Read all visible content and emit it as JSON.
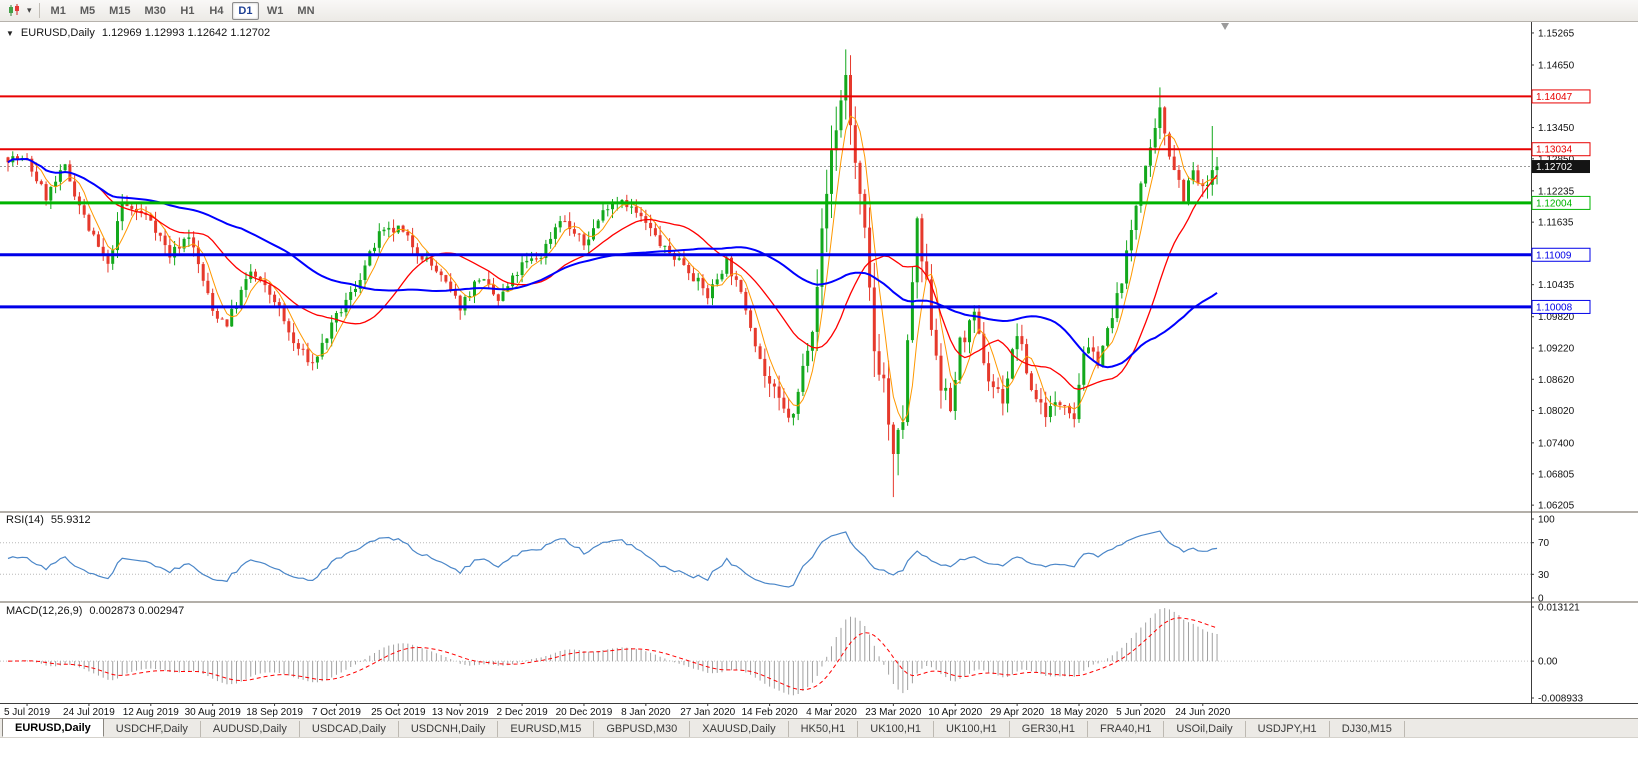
{
  "toolbar": {
    "timeframes": [
      "M1",
      "M5",
      "M15",
      "M30",
      "H1",
      "H4",
      "D1",
      "W1",
      "MN"
    ],
    "active_timeframe": "D1"
  },
  "main_chart": {
    "symbol_title": "EURUSD,Daily",
    "ohlc": "1.12969 1.12993 1.12642 1.12702",
    "bid_label": "1.12702",
    "axis_labels": [
      "1.15265",
      "1.14650",
      "1.13450",
      "1.12850",
      "1.12235",
      "1.11635",
      "1.10435",
      "1.09820",
      "1.09220",
      "1.08620",
      "1.08020",
      "1.07400",
      "1.06805",
      "1.06205"
    ],
    "hlines": [
      {
        "price": 1.14047,
        "label": "1.14047",
        "color": "#e80000",
        "width": 2
      },
      {
        "price": 1.13034,
        "label": "1.13034",
        "color": "#e80000",
        "width": 2
      },
      {
        "price": 1.12004,
        "label": "1.12004",
        "color": "#00b400",
        "width": 3
      },
      {
        "price": 1.11009,
        "label": "1.11009",
        "color": "#0000e8",
        "width": 3
      },
      {
        "price": 1.10008,
        "label": "1.10008",
        "color": "#0000e8",
        "width": 3
      }
    ]
  },
  "rsi_panel": {
    "title": "RSI(14)",
    "value": "55.9312",
    "axis_labels": [
      "100",
      "70",
      "30",
      "0"
    ],
    "level_lines": [
      70,
      30
    ]
  },
  "macd_panel": {
    "title": "MACD(12,26,9)",
    "values": "0.002873 0.002947",
    "axis_labels": [
      {
        "value": 0.013121,
        "label": "0.013121"
      },
      {
        "value": 0,
        "label": "0.00"
      },
      {
        "value": -0.008933,
        "label": "-0.008933"
      }
    ]
  },
  "time_axis": {
    "labels": [
      "5 Jul 2019",
      "24 Jul 2019",
      "12 Aug 2019",
      "30 Aug 2019",
      "18 Sep 2019",
      "7 Oct 2019",
      "25 Oct 2019",
      "13 Nov 2019",
      "2 Dec 2019",
      "20 Dec 2019",
      "8 Jan 2020",
      "27 Jan 2020",
      "14 Feb 2020",
      "4 Mar 2020",
      "23 Mar 2020",
      "10 Apr 2020",
      "29 Apr 2020",
      "18 May 2020",
      "5 Jun 2020",
      "24 Jun 2020"
    ]
  },
  "tabs": {
    "active": "EURUSD,Daily",
    "items": [
      "EURUSD,Daily",
      "USDCHF,Daily",
      "AUDUSD,Daily",
      "USDCAD,Daily",
      "USDCNH,Daily",
      "EURUSD,M15",
      "GBPUSD,M30",
      "XAUUSD,Daily",
      "HK50,H1",
      "UK100,H1",
      "UK100,H1",
      "GER30,H1",
      "FRA40,H1",
      "USOil,Daily",
      "USDJPY,H1",
      "DJ30,M15"
    ]
  },
  "colors": {
    "up": "#13a81c",
    "down": "#e6392c",
    "ma_fast": "#ff9800",
    "ma_mid": "#ff0000",
    "ma_slow": "#0000ff",
    "rsi_line": "#4a86c8",
    "macd_hist": "#a0a0a0",
    "macd_signal": "#ff0000",
    "bid_box_bg": "#141414",
    "bid_box_text": "#ffffff",
    "axis_text": "#111111"
  },
  "chart_data": {
    "type": "candlestick",
    "symbol": "EURUSD",
    "timeframe": "Daily",
    "title": "EURUSD,Daily 1.12969 1.12993 1.12642 1.12702",
    "candle_count": 255,
    "last_close": 1.12702,
    "price_axis_range": [
      1.0615,
      1.1536
    ],
    "macd_axis": {
      "max": 0.013121,
      "min": -0.008933
    },
    "rsi_axis": [
      0,
      100
    ],
    "time_tick_first_index": 4,
    "time_tick_step": 13,
    "seed": 7,
    "close_anchors": [
      [
        0,
        1.1288
      ],
      [
        4,
        1.128
      ],
      [
        8,
        1.1212
      ],
      [
        12,
        1.1268
      ],
      [
        17,
        1.115
      ],
      [
        21,
        1.1077
      ],
      [
        24,
        1.1198
      ],
      [
        30,
        1.117
      ],
      [
        34,
        1.11
      ],
      [
        38,
        1.114
      ],
      [
        43,
        1.0992
      ],
      [
        46,
        1.097
      ],
      [
        51,
        1.1068
      ],
      [
        56,
        1.1015
      ],
      [
        60,
        1.093
      ],
      [
        64,
        1.0892
      ],
      [
        69,
        1.098
      ],
      [
        73,
        1.104
      ],
      [
        78,
        1.1138
      ],
      [
        82,
        1.115
      ],
      [
        86,
        1.111
      ],
      [
        90,
        1.107
      ],
      [
        95,
        1.1002
      ],
      [
        99,
        1.1058
      ],
      [
        103,
        1.1012
      ],
      [
        108,
        1.108
      ],
      [
        112,
        1.11
      ],
      [
        116,
        1.1173
      ],
      [
        121,
        1.112
      ],
      [
        126,
        1.1198
      ],
      [
        129,
        1.121
      ],
      [
        134,
        1.116
      ],
      [
        138,
        1.111
      ],
      [
        142,
        1.1085
      ],
      [
        147,
        1.1022
      ],
      [
        151,
        1.109
      ],
      [
        155,
        1.1
      ],
      [
        159,
        1.087
      ],
      [
        163,
        1.08
      ],
      [
        165,
        1.0788
      ],
      [
        169,
        1.0978
      ],
      [
        171,
        1.1135
      ],
      [
        173,
        1.13
      ],
      [
        176,
        1.1446
      ],
      [
        178,
        1.127
      ],
      [
        180,
        1.113
      ],
      [
        182,
        1.092
      ],
      [
        184,
        1.086
      ],
      [
        186,
        1.07
      ],
      [
        188,
        1.079
      ],
      [
        190,
        1.105
      ],
      [
        191,
        1.1145
      ],
      [
        193,
        1.103
      ],
      [
        196,
        1.0862
      ],
      [
        198,
        1.0802
      ],
      [
        200,
        1.093
      ],
      [
        203,
        1.0978
      ],
      [
        206,
        1.0862
      ],
      [
        209,
        1.0825
      ],
      [
        212,
        1.0952
      ],
      [
        215,
        1.0842
      ],
      [
        218,
        1.08
      ],
      [
        222,
        1.0822
      ],
      [
        224,
        1.0792
      ],
      [
        226,
        1.0918
      ],
      [
        229,
        1.09
      ],
      [
        232,
        1.0978
      ],
      [
        235,
        1.1098
      ],
      [
        238,
        1.1248
      ],
      [
        240,
        1.1292
      ],
      [
        242,
        1.1373
      ],
      [
        244,
        1.13
      ],
      [
        247,
        1.1215
      ],
      [
        249,
        1.1258
      ],
      [
        251,
        1.122
      ],
      [
        253,
        1.1252
      ],
      [
        254,
        1.12702
      ]
    ],
    "volatility": [
      {
        "from": 0,
        "to": 158,
        "range": 0.0036
      },
      {
        "from": 159,
        "to": 168,
        "range": 0.0052
      },
      {
        "from": 169,
        "to": 196,
        "range": 0.01
      },
      {
        "from": 197,
        "to": 214,
        "range": 0.0055
      },
      {
        "from": 215,
        "to": 235,
        "range": 0.0045
      },
      {
        "from": 236,
        "to": 254,
        "range": 0.0055
      }
    ],
    "wick_overrides": [
      {
        "i": 64,
        "low": 1.0879
      },
      {
        "i": 165,
        "low": 1.0778
      },
      {
        "i": 176,
        "high": 1.1495
      },
      {
        "i": 186,
        "low": 1.0636
      },
      {
        "i": 242,
        "high": 1.1422
      },
      {
        "i": 253,
        "high": 1.1348
      }
    ],
    "moving_averages": [
      {
        "period": 5,
        "color_key": "ma_fast",
        "width": 1
      },
      {
        "period": 20,
        "color_key": "ma_mid",
        "width": 1.3
      },
      {
        "period": 50,
        "color_key": "ma_slow",
        "width": 2
      }
    ],
    "indicators": [
      {
        "name": "RSI",
        "period": 14,
        "current": 55.9312,
        "levels": [
          70,
          30
        ]
      },
      {
        "name": "MACD",
        "fast": 12,
        "slow": 26,
        "signal": 9,
        "current_macd": 0.002873,
        "current_signal": 0.002947
      }
    ]
  }
}
